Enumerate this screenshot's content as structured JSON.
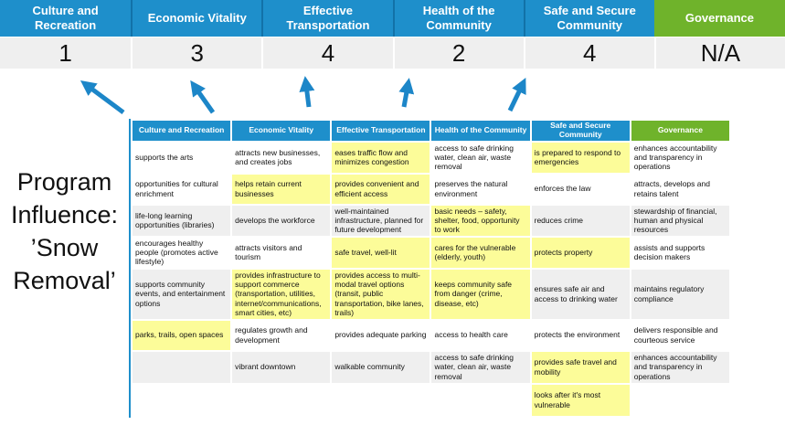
{
  "program_label": "Program Influence: ’Snow Removal’",
  "colors": {
    "header_blue": "#1E8FCB",
    "divider_blue": "#1272A8",
    "header_green": "#6FB32B",
    "score_bg": "#EFEFEF",
    "row_gray": "#EFEFEF",
    "highlight_yellow": "#FCFC99",
    "arrow_blue": "#1C86C8"
  },
  "scoreboard": {
    "columns": [
      {
        "label": "Culture and Recreation",
        "score": "1",
        "accent": "blue"
      },
      {
        "label": "Economic Vitality",
        "score": "3",
        "accent": "blue"
      },
      {
        "label": "Effective Transportation",
        "score": "4",
        "accent": "blue"
      },
      {
        "label": "Health of the Community",
        "score": "2",
        "accent": "blue"
      },
      {
        "label": "Safe and Secure Community",
        "score": "4",
        "accent": "blue"
      },
      {
        "label": "Governance",
        "score": "N/A",
        "accent": "green"
      }
    ]
  },
  "matrix": {
    "headers": [
      {
        "label": "Culture and Recreation",
        "accent": "blue"
      },
      {
        "label": "Economic Vitality",
        "accent": "blue"
      },
      {
        "label": "Effective Transportation",
        "accent": "blue"
      },
      {
        "label": "Health of the Community",
        "accent": "blue"
      },
      {
        "label": "Safe and Secure Community",
        "accent": "blue"
      },
      {
        "label": "Governance",
        "accent": "green"
      }
    ],
    "rows": [
      [
        {
          "text": "supports the arts",
          "highlight": false
        },
        {
          "text": "attracts new businesses, and creates jobs",
          "highlight": false
        },
        {
          "text": "eases traffic flow and minimizes congestion",
          "highlight": true
        },
        {
          "text": "access to safe drinking water, clean air, waste removal",
          "highlight": false
        },
        {
          "text": "is prepared to respond to emergencies",
          "highlight": true
        },
        {
          "text": "enhances accountability and transparency in operations",
          "highlight": false
        }
      ],
      [
        {
          "text": "opportunities for cultural enrichment",
          "highlight": false
        },
        {
          "text": "helps retain current businesses",
          "highlight": true
        },
        {
          "text": "provides convenient and efficient access",
          "highlight": true
        },
        {
          "text": "preserves the natural environment",
          "highlight": false
        },
        {
          "text": "enforces the law",
          "highlight": false
        },
        {
          "text": "attracts, develops and retains talent",
          "highlight": false
        }
      ],
      [
        {
          "text": "life-long learning opportunities (libraries)",
          "highlight": false
        },
        {
          "text": "develops the workforce",
          "highlight": false
        },
        {
          "text": "well-maintained infrastructure, planned for future development",
          "highlight": false
        },
        {
          "text": "basic needs – safety, shelter, food, opportunity to work",
          "highlight": true
        },
        {
          "text": "reduces crime",
          "highlight": false
        },
        {
          "text": "stewardship of financial, human and physical resources",
          "highlight": false
        }
      ],
      [
        {
          "text": "encourages healthy people (promotes active lifestyle)",
          "highlight": false
        },
        {
          "text": "attracts visitors and tourism",
          "highlight": false
        },
        {
          "text": "safe travel, well-lit",
          "highlight": true
        },
        {
          "text": "cares for the vulnerable (elderly, youth)",
          "highlight": true
        },
        {
          "text": "protects property",
          "highlight": true
        },
        {
          "text": "assists and supports decision makers",
          "highlight": false
        }
      ],
      [
        {
          "text": "supports community events, and entertainment options",
          "highlight": false
        },
        {
          "text": "provides infrastructure to support commerce (transportation, utilities, internet/communications, smart cities, etc)",
          "highlight": true
        },
        {
          "text": "provides access to multi-modal travel options (transit, public transportation, bike lanes, trails)",
          "highlight": true
        },
        {
          "text": "keeps community safe from danger (crime, disease, etc)",
          "highlight": true
        },
        {
          "text": "ensures safe air and access to drinking water",
          "highlight": false
        },
        {
          "text": "maintains regulatory compliance",
          "highlight": false
        }
      ],
      [
        {
          "text": "parks, trails, open spaces",
          "highlight": true
        },
        {
          "text": "regulates growth and development",
          "highlight": false
        },
        {
          "text": "provides adequate parking",
          "highlight": false
        },
        {
          "text": "access to health care",
          "highlight": false
        },
        {
          "text": "protects the environment",
          "highlight": false
        },
        {
          "text": "delivers responsible and courteous service",
          "highlight": false
        }
      ],
      [
        {
          "text": "",
          "highlight": false
        },
        {
          "text": "vibrant downtown",
          "highlight": false
        },
        {
          "text": "walkable community",
          "highlight": false
        },
        {
          "text": "access to safe drinking water, clean air, waste removal",
          "highlight": false
        },
        {
          "text": "provides safe travel and mobility",
          "highlight": true
        },
        {
          "text": "enhances accountability and transparency in operations",
          "highlight": false
        }
      ],
      [
        {
          "text": "",
          "highlight": false
        },
        {
          "text": "",
          "highlight": false
        },
        {
          "text": "",
          "highlight": false
        },
        {
          "text": "",
          "highlight": false
        },
        {
          "text": "looks after it's most vulnerable",
          "highlight": true
        },
        {
          "text": "",
          "highlight": false
        }
      ]
    ]
  }
}
